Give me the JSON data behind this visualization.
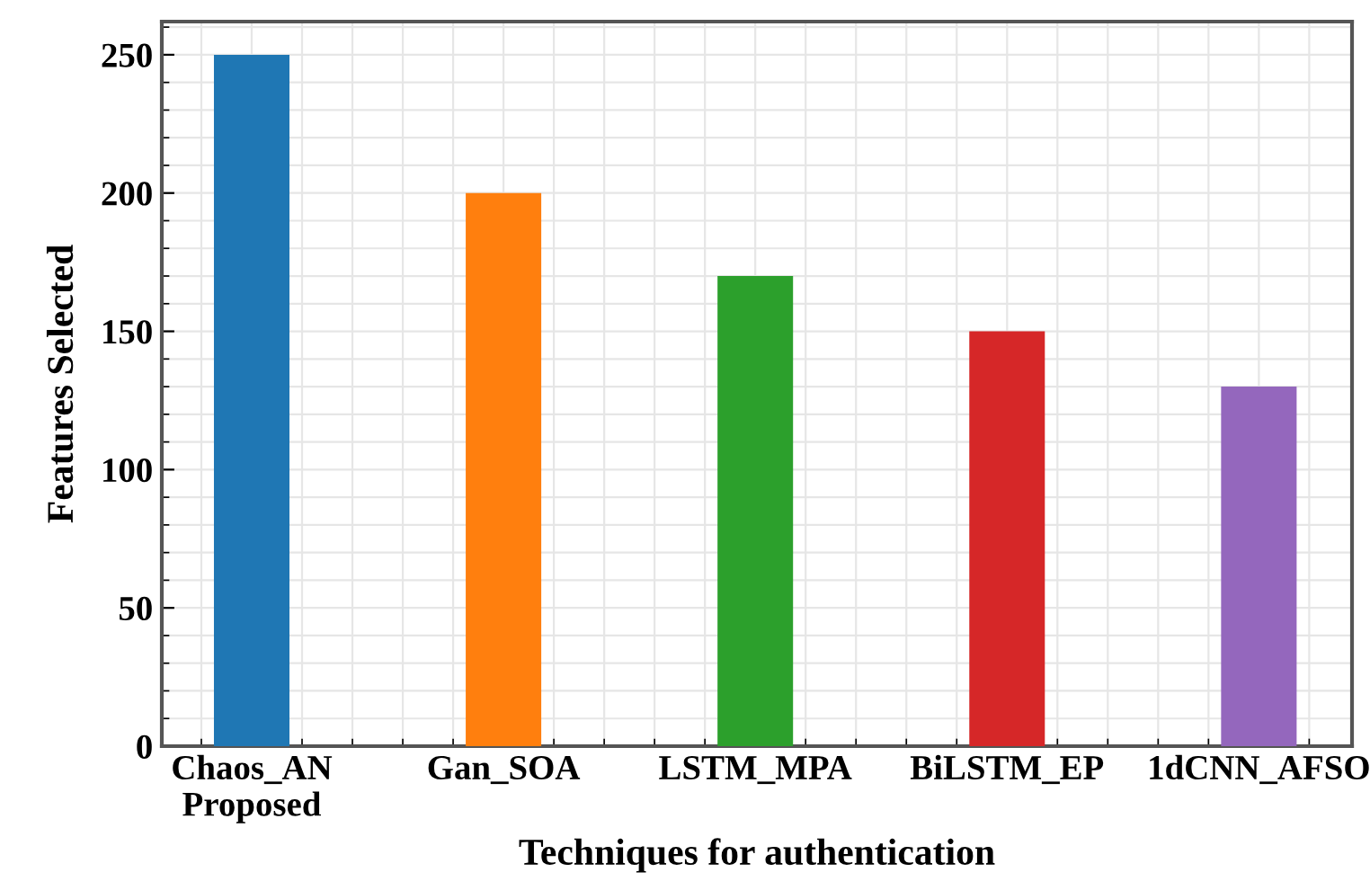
{
  "chart_data": {
    "type": "bar",
    "xlabel": "Techniques for authentication",
    "ylabel": "Features Selected",
    "categories": [
      "Chaos_AN\nProposed",
      "Gan_SOA",
      "LSTM_MPA",
      "BiLSTM_EP",
      "1dCNN_AFSO"
    ],
    "values": [
      250,
      200,
      170,
      150,
      130
    ],
    "colors": [
      "#1f77b4",
      "#ff7f0e",
      "#2ca02c",
      "#d62728",
      "#9467bd"
    ],
    "ylim": [
      0,
      262
    ],
    "yticks": [
      0,
      50,
      100,
      150,
      200,
      250
    ],
    "grid": true
  }
}
